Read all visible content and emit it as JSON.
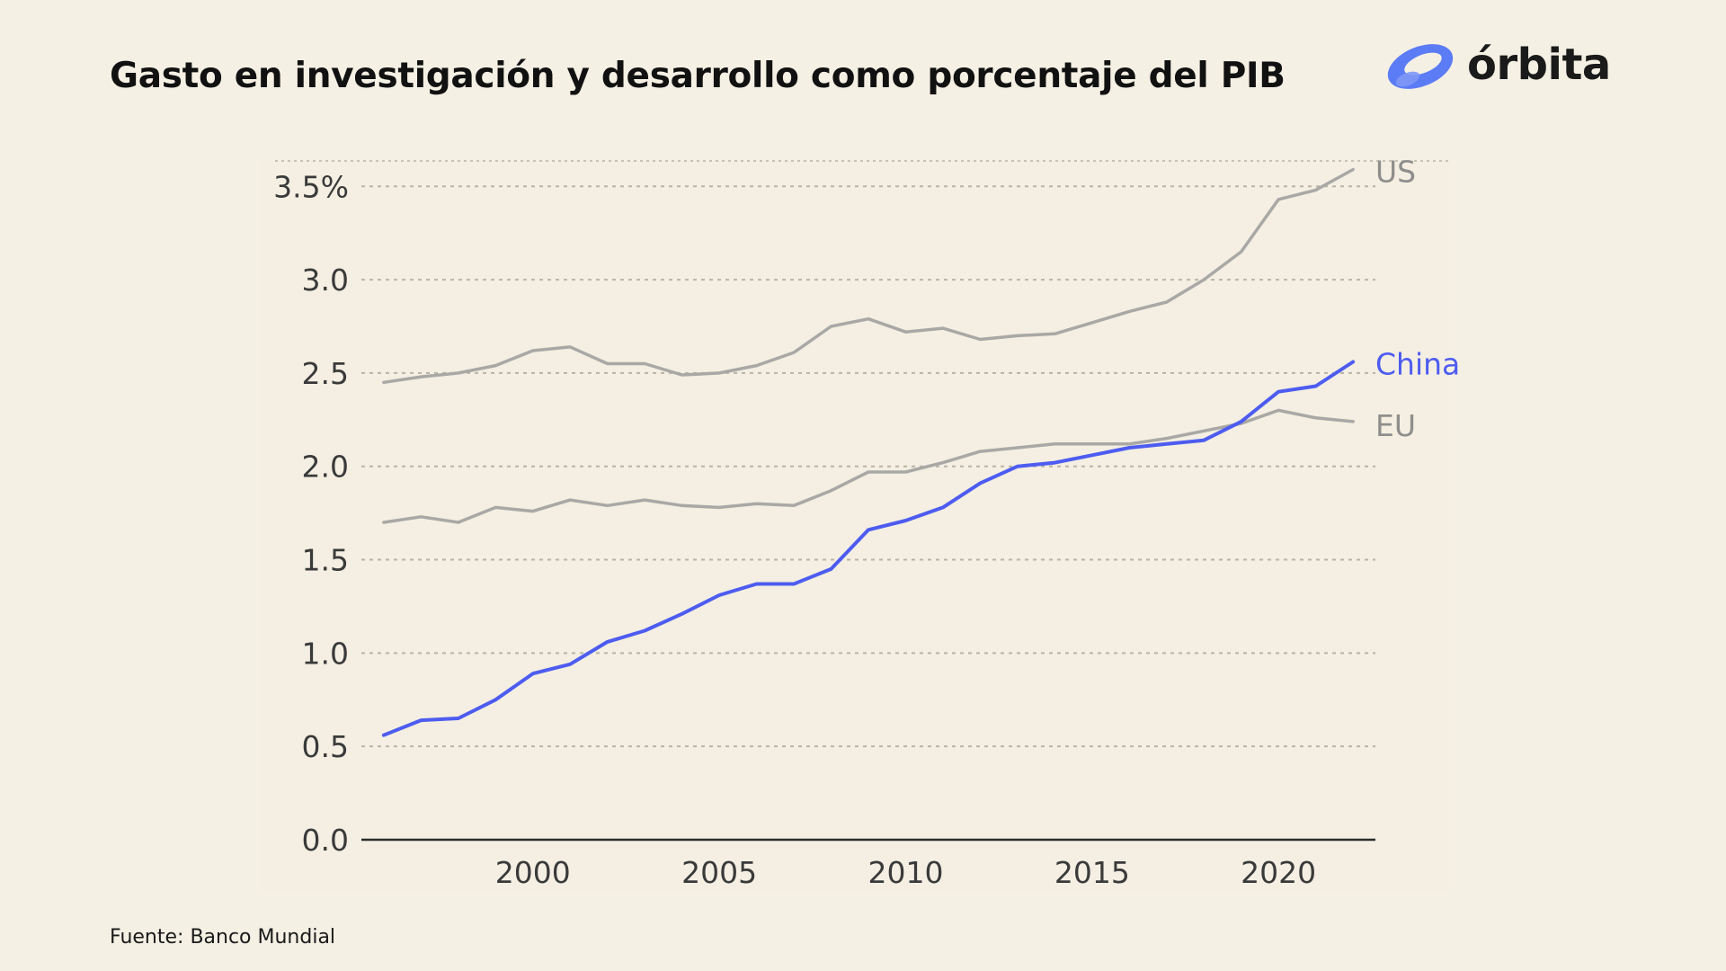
{
  "title": "Gasto en investigación y desarrollo como porcentaje del PIB",
  "brand": {
    "name": "órbita",
    "icon": "orbit-logo-icon",
    "accent": "#5b7cf5"
  },
  "source": "Fuente: Banco Mundial",
  "colors": {
    "background": "#f5f0e4",
    "plot_bg": "#f4efe2",
    "gray_series": "#a9a8a5",
    "china": "#4d5cf0",
    "grid": "#b9b3a6",
    "axis": "#2b2b2b"
  },
  "chart_data": {
    "type": "line",
    "title": "Gasto en investigación y desarrollo como porcentaje del PIB",
    "xlabel": "",
    "ylabel": "",
    "x": [
      1996,
      1997,
      1998,
      1999,
      2000,
      2001,
      2002,
      2003,
      2004,
      2005,
      2006,
      2007,
      2008,
      2009,
      2010,
      2011,
      2012,
      2013,
      2014,
      2015,
      2016,
      2017,
      2018,
      2019,
      2020,
      2021,
      2022
    ],
    "xlim": [
      1995.4,
      2022.6
    ],
    "ylim": [
      0,
      3.8
    ],
    "x_ticks": [
      2000,
      2005,
      2010,
      2015,
      2020
    ],
    "x_tick_labels": [
      "2000",
      "2005",
      "2010",
      "2015",
      "2020"
    ],
    "y_ticks": [
      0,
      0.5,
      1.0,
      1.5,
      2.0,
      2.5,
      3.0,
      3.5
    ],
    "y_tick_labels": [
      "0.0",
      "0.5",
      "1.0",
      "1.5",
      "2.0",
      "2.5",
      "3.0",
      "3.5%"
    ],
    "grid": "horizontal-dotted",
    "legend": "inline-right",
    "series": [
      {
        "name": "US",
        "values": [
          2.45,
          2.48,
          2.5,
          2.54,
          2.62,
          2.64,
          2.55,
          2.55,
          2.49,
          2.5,
          2.54,
          2.61,
          2.75,
          2.79,
          2.72,
          2.74,
          2.68,
          2.7,
          2.71,
          2.77,
          2.83,
          2.88,
          3.0,
          3.15,
          3.43,
          3.48,
          3.59
        ]
      },
      {
        "name": "China",
        "values": [
          0.56,
          0.64,
          0.65,
          0.75,
          0.89,
          0.94,
          1.06,
          1.12,
          1.21,
          1.31,
          1.37,
          1.37,
          1.45,
          1.66,
          1.71,
          1.78,
          1.91,
          2.0,
          2.02,
          2.06,
          2.1,
          2.12,
          2.14,
          2.24,
          2.4,
          2.43,
          2.56
        ]
      },
      {
        "name": "EU",
        "values": [
          1.7,
          1.73,
          1.7,
          1.78,
          1.76,
          1.82,
          1.79,
          1.82,
          1.79,
          1.78,
          1.8,
          1.79,
          1.87,
          1.97,
          1.97,
          2.02,
          2.08,
          2.1,
          2.12,
          2.12,
          2.12,
          2.15,
          2.19,
          2.23,
          2.3,
          2.26,
          2.24
        ]
      }
    ]
  }
}
